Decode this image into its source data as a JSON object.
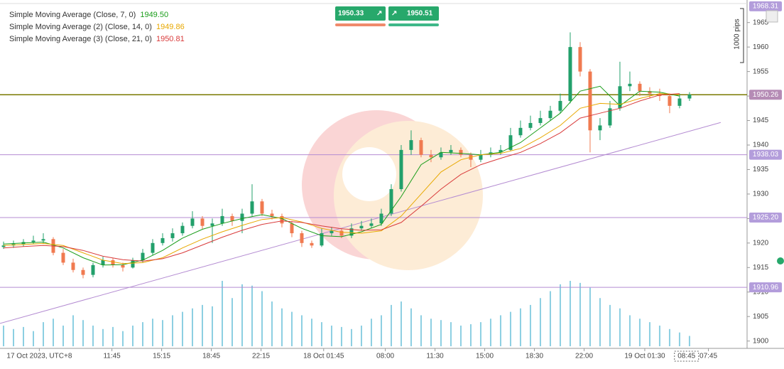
{
  "chart_data": {
    "type": "candlestick",
    "legend": [
      {
        "text": "Simple Moving Average (Close, 7, 0)",
        "value": "1949.50",
        "color": "#1a9d1a"
      },
      {
        "text": "Simple Moving Average (2) (Close, 14, 0)",
        "value": "1949.86",
        "color": "#e8a800"
      },
      {
        "text": "Simple Moving Average (3) (Close, 21, 0)",
        "value": "1950.81",
        "color": "#d93b3b"
      }
    ],
    "sell_price": "1950.33",
    "buy_price": "1950.51",
    "pips_label": "1000 pips",
    "up_color": "#22a06b",
    "down_color": "#f07a50",
    "volume_color": "#8ccfe2",
    "candles": [
      [
        1919.2,
        1920.3,
        1918.8,
        1919.5
      ],
      [
        1919.5,
        1920.5,
        1919,
        1919.8
      ],
      [
        1919.8,
        1920.8,
        1919.3,
        1920.2
      ],
      [
        1920.2,
        1921.5,
        1919.8,
        1920.5
      ],
      [
        1920.5,
        1922,
        1920,
        1920.8
      ],
      [
        1920.8,
        1921.2,
        1917.5,
        1918
      ],
      [
        1918,
        1918.8,
        1915.5,
        1916
      ],
      [
        1916,
        1916.8,
        1914,
        1914.5
      ],
      [
        1914.5,
        1915,
        1912.8,
        1913.5
      ],
      [
        1913.5,
        1916,
        1913,
        1915.5
      ],
      [
        1915.5,
        1917.2,
        1915,
        1916.5
      ],
      [
        1916.5,
        1917,
        1915,
        1915.5
      ],
      [
        1915.5,
        1916,
        1914.2,
        1915
      ],
      [
        1915,
        1917,
        1914.8,
        1916.5
      ],
      [
        1916.5,
        1918.8,
        1916,
        1918
      ],
      [
        1918,
        1920.8,
        1917.5,
        1920
      ],
      [
        1920,
        1922,
        1919.5,
        1921
      ],
      [
        1921,
        1923,
        1920.3,
        1922
      ],
      [
        1922,
        1924.2,
        1921.5,
        1923.5
      ],
      [
        1923.5,
        1926.5,
        1923,
        1925
      ],
      [
        1925,
        1925.5,
        1922.8,
        1923.5
      ],
      [
        1923.5,
        1925,
        1920,
        1924
      ],
      [
        1924,
        1927,
        1923.5,
        1925.5
      ],
      [
        1925.5,
        1926,
        1923.5,
        1924.5
      ],
      [
        1924.5,
        1927,
        1922,
        1926
      ],
      [
        1926,
        1932,
        1925.5,
        1928.5
      ],
      [
        1928.5,
        1929,
        1925.5,
        1926
      ],
      [
        1926,
        1926.8,
        1924.8,
        1925.5
      ],
      [
        1925.5,
        1926,
        1923.2,
        1924
      ],
      [
        1924,
        1924.5,
        1921.2,
        1922
      ],
      [
        1922,
        1922.5,
        1919.2,
        1920
      ],
      [
        1920,
        1920.5,
        1919,
        1919.5
      ],
      [
        1919.5,
        1923,
        1919.2,
        1922
      ],
      [
        1922,
        1923.3,
        1921.5,
        1922.5
      ],
      [
        1922.5,
        1923,
        1921,
        1921.5
      ],
      [
        1921.5,
        1924,
        1921,
        1923
      ],
      [
        1923,
        1924.5,
        1922.5,
        1923.5
      ],
      [
        1923.5,
        1925,
        1923,
        1924
      ],
      [
        1924,
        1927,
        1923.5,
        1926
      ],
      [
        1926,
        1932,
        1925.5,
        1931
      ],
      [
        1931,
        1940,
        1930.5,
        1939
      ],
      [
        1939,
        1943,
        1938,
        1941
      ],
      [
        1941,
        1941.5,
        1937.5,
        1938
      ],
      [
        1938,
        1939,
        1936.5,
        1937.5
      ],
      [
        1937.5,
        1939.5,
        1937,
        1938.5
      ],
      [
        1938.5,
        1940,
        1938,
        1939
      ],
      [
        1939,
        1939.5,
        1937.5,
        1938
      ],
      [
        1938,
        1938.5,
        1935.5,
        1937
      ],
      [
        1937,
        1939,
        1936.5,
        1938
      ],
      [
        1938,
        1939.5,
        1937.5,
        1938.5
      ],
      [
        1938.5,
        1940,
        1938,
        1939
      ],
      [
        1939,
        1943.5,
        1938.8,
        1942
      ],
      [
        1942,
        1945,
        1941.5,
        1943.5
      ],
      [
        1943.5,
        1946,
        1943,
        1944.5
      ],
      [
        1944.5,
        1947,
        1944,
        1945.5
      ],
      [
        1945.5,
        1948,
        1945,
        1947
      ],
      [
        1947,
        1950.5,
        1946.5,
        1949
      ],
      [
        1949,
        1963,
        1948.5,
        1960
      ],
      [
        1960,
        1961,
        1954,
        1955
      ],
      [
        1955,
        1955.5,
        1938.5,
        1943
      ],
      [
        1943,
        1945.5,
        1941,
        1944
      ],
      [
        1944,
        1949,
        1943.5,
        1947.5
      ],
      [
        1947.5,
        1957,
        1947,
        1952
      ],
      [
        1952,
        1955,
        1951,
        1952.5
      ],
      [
        1952.5,
        1953,
        1950,
        1951
      ],
      [
        1951,
        1951.8,
        1949.5,
        1950.5
      ],
      [
        1950.5,
        1951.5,
        1949,
        1950
      ],
      [
        1950,
        1950.5,
        1946.5,
        1948
      ],
      [
        1948,
        1950.5,
        1947.5,
        1949.5
      ],
      [
        1949.5,
        1950.8,
        1949,
        1950.3
      ]
    ],
    "volume": [
      30,
      25,
      28,
      22,
      35,
      40,
      30,
      45,
      38,
      30,
      25,
      28,
      22,
      30,
      35,
      40,
      38,
      45,
      50,
      55,
      60,
      58,
      95,
      70,
      90,
      88,
      80,
      65,
      55,
      50,
      45,
      40,
      35,
      30,
      28,
      25,
      30,
      40,
      45,
      60,
      65,
      55,
      45,
      40,
      38,
      35,
      30,
      32,
      35,
      40,
      45,
      50,
      55,
      60,
      70,
      80,
      90,
      95,
      92,
      85,
      70,
      60,
      55,
      45,
      40,
      35,
      30,
      25,
      20,
      15
    ],
    "sma_x": [
      0,
      2,
      4,
      6,
      8,
      10,
      12,
      14,
      16,
      18,
      20,
      22,
      24,
      26,
      28,
      30,
      32,
      34,
      36,
      38,
      40,
      42,
      44,
      46,
      48,
      50,
      52,
      54,
      56,
      58,
      60,
      62,
      64,
      66,
      68
    ],
    "series": [
      {
        "name": "Simple Moving Average (Close, 7, 0)",
        "color": "#1a9d1a",
        "values": [
          1919.8,
          1920,
          1920.2,
          1919,
          1917,
          1915.5,
          1915.6,
          1916.5,
          1918.5,
          1921,
          1922.8,
          1924,
          1925,
          1925.8,
          1925,
          1923,
          1921.5,
          1921.3,
          1922.3,
          1923.8,
          1929.5,
          1936,
          1938.5,
          1938.3,
          1938,
          1938.5,
          1940.5,
          1943.5,
          1946.5,
          1951,
          1952,
          1948,
          1951,
          1950.8,
          1950
        ]
      },
      {
        "name": "Simple Moving Average (2) (Close, 14, 0)",
        "color": "#e8a800",
        "values": [
          1919.5,
          1919.7,
          1919.9,
          1919.5,
          1918,
          1916.5,
          1915.8,
          1916,
          1917,
          1919,
          1920.8,
          1922.3,
          1923.6,
          1924.8,
          1925.2,
          1924.3,
          1923,
          1922.2,
          1922,
          1922.5,
          1925.5,
          1930,
          1934.5,
          1937,
          1938,
          1938.3,
          1939.3,
          1941.5,
          1944,
          1947.5,
          1948.5,
          1948.3,
          1949.5,
          1950.5,
          1950.3
        ]
      },
      {
        "name": "Simple Moving Average (3) (Close, 21, 0)",
        "color": "#d93b3b",
        "values": [
          1919,
          1919.3,
          1919.5,
          1919.3,
          1918.5,
          1917.3,
          1916.6,
          1916.3,
          1916.8,
          1918,
          1919.6,
          1921.2,
          1922.6,
          1923.8,
          1924.5,
          1924.2,
          1923.5,
          1922.9,
          1922.6,
          1922.7,
          1924.2,
          1927.5,
          1931,
          1934,
          1936,
          1937.3,
          1938.5,
          1940.3,
          1942.5,
          1945.5,
          1946.5,
          1947.5,
          1949,
          1950.2,
          1950.5
        ]
      }
    ],
    "levels": [
      {
        "value": 1950.26,
        "color": "#7a7a00",
        "label_color": "#b58bb5"
      },
      {
        "value": 1938.03,
        "color": "#b48cd2",
        "label_color": "#b39ddb"
      },
      {
        "value": {
          "value": 1925.2,
          "label": "1925.20"
        },
        "color": "#b48cd2",
        "label_color": "#b39ddb"
      },
      {
        "value": 1910.96,
        "color": "#b48cd2",
        "label_color": "#b39ddb"
      }
    ],
    "top_label": 1968.31,
    "trendline": {
      "x": [
        -0.36,
        72.14
      ],
      "y": [
        1903.6,
        1944.6
      ],
      "color": "#b48cd2"
    },
    "crosshair_x": {
      "value": 68.7,
      "label": "08:45"
    },
    "xlim": [
      -0.357,
      74.79
    ],
    "ylim": [
      1898.5,
      1969.6
    ],
    "yticks": [
      1900,
      1905,
      1910,
      1915,
      1920,
      1925,
      1930,
      1935,
      1940,
      1945,
      1950,
      1955,
      1960,
      1965
    ],
    "xticks": [
      {
        "value": 3.6,
        "label": "17 Oct 2023, UTC+8"
      },
      {
        "value": 10.9,
        "label": "11:45"
      },
      {
        "value": 15.9,
        "label": "15:15"
      },
      {
        "value": 20.9,
        "label": "18:45"
      },
      {
        "value": 25.9,
        "label": "22:15"
      },
      {
        "value": 32.2,
        "label": "18 Oct 01:45"
      },
      {
        "value": 38.4,
        "label": "08:00"
      },
      {
        "value": 43.4,
        "label": "11:30"
      },
      {
        "value": 48.4,
        "label": "15:00"
      },
      {
        "value": 53.4,
        "label": "18:30"
      },
      {
        "value": 58.4,
        "label": "22:00"
      },
      {
        "value": 64.5,
        "label": "19 Oct 01:30"
      },
      {
        "value": 70.9,
        "label": "07:45"
      }
    ]
  }
}
